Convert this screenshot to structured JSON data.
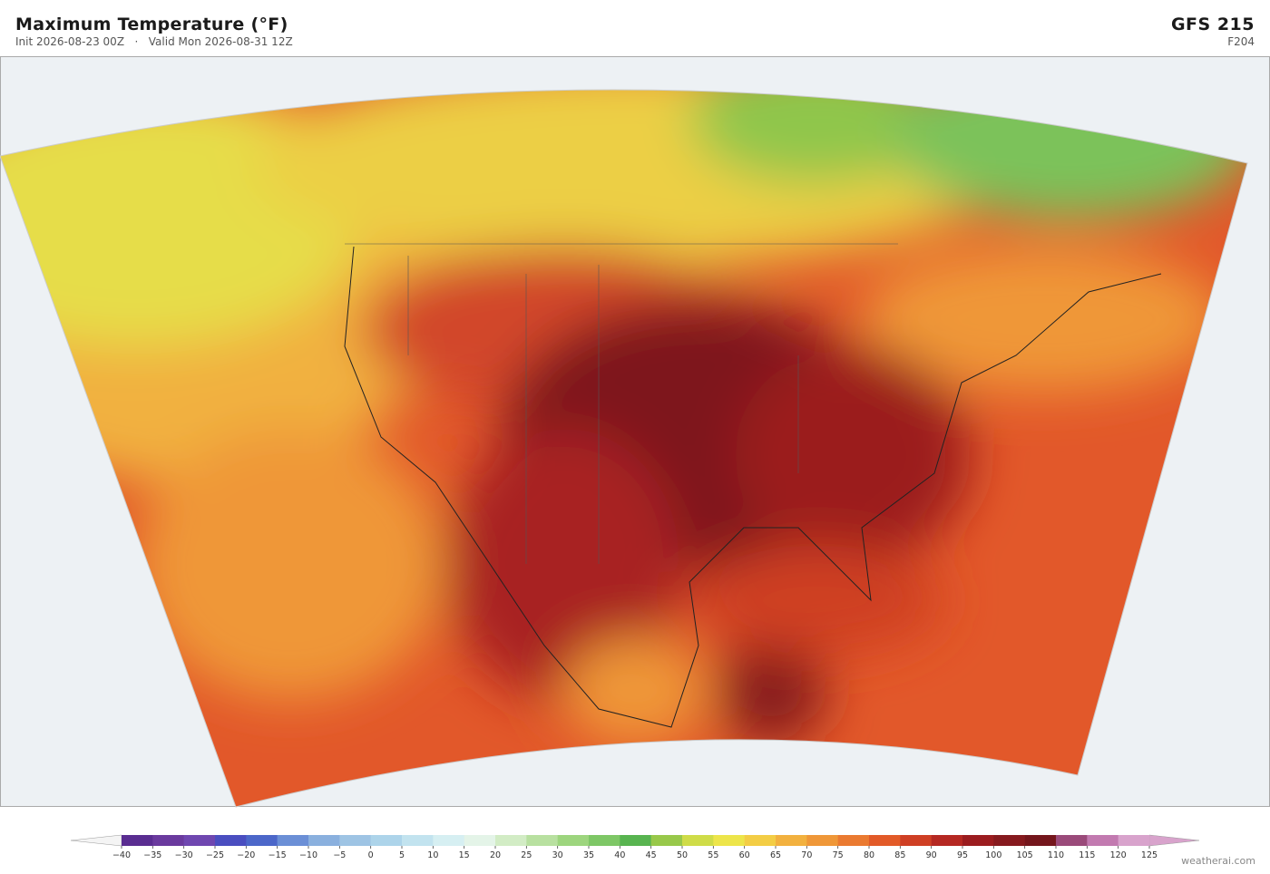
{
  "header": {
    "title": "Maximum Temperature  (°F)",
    "init": "Init 2026-08-23 00Z",
    "separator": "·",
    "valid": "Valid Mon 2026-08-31 12Z",
    "model": "GFS  215",
    "frame": "F204"
  },
  "colorbar": {
    "ticks": [
      {
        "value": -40,
        "label": "−40"
      },
      {
        "value": -35,
        "label": "−35"
      },
      {
        "value": -30,
        "label": "−30"
      },
      {
        "value": -25,
        "label": "−25"
      },
      {
        "value": -20,
        "label": "−20"
      },
      {
        "value": -15,
        "label": "−15"
      },
      {
        "value": -10,
        "label": "−10"
      },
      {
        "value": -5,
        "label": "−5"
      },
      0,
      5,
      10,
      15,
      20,
      25,
      30,
      35,
      40,
      45,
      50,
      55,
      60,
      65,
      70,
      75,
      80,
      85,
      90,
      95,
      100,
      105,
      110,
      115,
      120,
      125
    ],
    "colors": [
      "#5a2d91",
      "#6a3a9e",
      "#6f47b0",
      "#4a4ec0",
      "#4c67c9",
      "#6b8fd6",
      "#8ab0de",
      "#9ec4e4",
      "#add4ea",
      "#c2e3ef",
      "#d6eff2",
      "#e4f4e8",
      "#d2ecc5",
      "#b8e0a0",
      "#9dd57e",
      "#7ec766",
      "#58b450",
      "#98c84a",
      "#cfdc48",
      "#ede54a",
      "#f3cd45",
      "#f2b13f",
      "#ef9738",
      "#ea7a31",
      "#e25a28",
      "#cf3f24",
      "#b52822",
      "#9b1c1f",
      "#861a1e",
      "#74161c",
      "#9a4a7a",
      "#c27ab0",
      "#d8a3cc"
    ],
    "under_color": "#f4f4f4",
    "over_color": "#d8a3cc"
  },
  "footer": {
    "credit": "weatherai.com"
  }
}
